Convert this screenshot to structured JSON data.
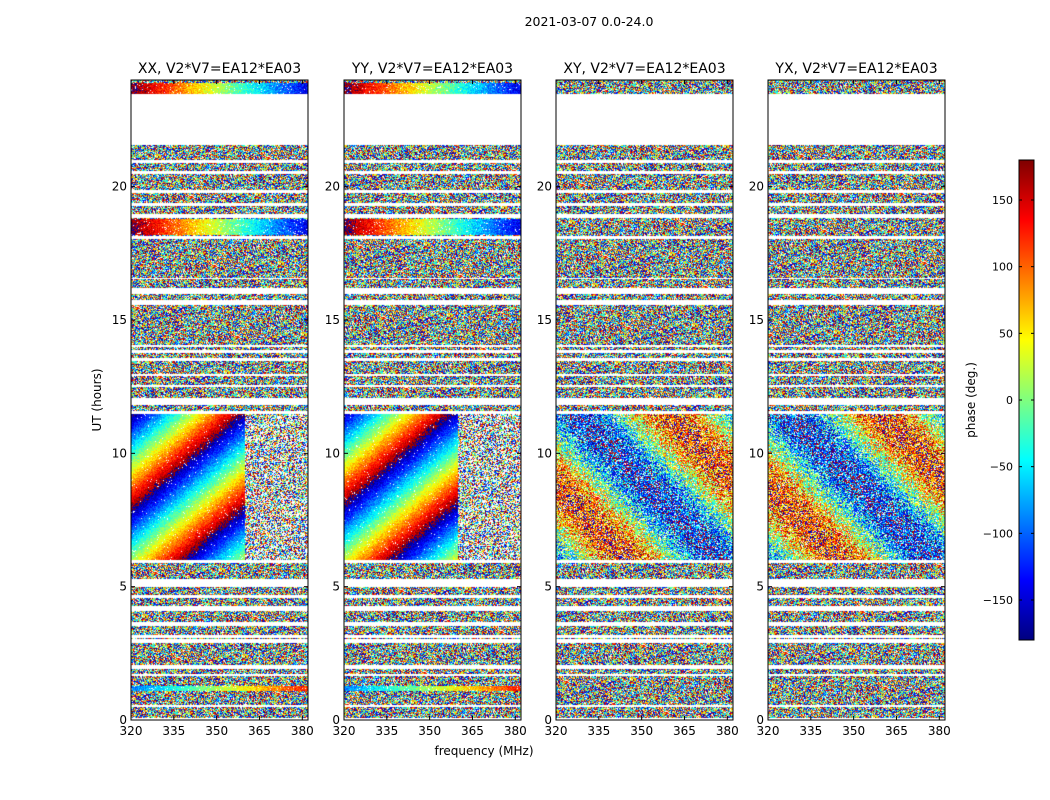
{
  "figure": {
    "suptitle": "2021-03-07 0.0-24.0"
  },
  "chart_data": {
    "type": "heatmap",
    "xlabel": "frequency (MHz)",
    "ylabel": "UT (hours)",
    "xlim": [
      320,
      382
    ],
    "ylim": [
      0,
      24
    ],
    "xticks": [
      320,
      335,
      350,
      365,
      380
    ],
    "yticks": [
      0,
      5,
      10,
      15,
      20
    ],
    "colorbar": {
      "label": "phase (deg.)",
      "range": [
        -180,
        180
      ],
      "ticks": [
        150,
        100,
        50,
        0,
        -50,
        -100,
        -150
      ],
      "tick_labels": [
        "150",
        "100",
        "50",
        "0",
        "−50",
        "−100",
        "−150"
      ],
      "colormap": "jet",
      "colors": [
        "#00007f",
        "#0000ff",
        "#007fff",
        "#00ffff",
        "#7fff7f",
        "#ffff00",
        "#ff7f00",
        "#ff0000",
        "#7f0000"
      ]
    },
    "panels": [
      {
        "title": "XX, V2*V7=EA12*EA03",
        "pol": "XX",
        "coherent": true
      },
      {
        "title": "YY, V2*V7=EA12*EA03",
        "pol": "YY",
        "coherent": true
      },
      {
        "title": "XY, V2*V7=EA12*EA03",
        "pol": "XY",
        "coherent": false
      },
      {
        "title": "YX, V2*V7=EA12*EA03",
        "pol": "YX",
        "coherent": false
      }
    ],
    "flagged_ut_hours": [
      [
        21.6,
        23.5
      ],
      [
        20.9,
        21.0
      ],
      [
        20.5,
        20.6
      ],
      [
        19.8,
        19.9
      ],
      [
        19.3,
        19.4
      ],
      [
        18.85,
        19.0
      ],
      [
        18.05,
        18.15
      ],
      [
        16.55,
        16.6
      ],
      [
        16.0,
        16.2
      ],
      [
        15.6,
        15.75
      ],
      [
        14.0,
        14.1
      ],
      [
        13.8,
        13.9
      ],
      [
        13.5,
        13.6
      ],
      [
        12.9,
        13.0
      ],
      [
        12.5,
        12.6
      ],
      [
        11.85,
        12.1
      ],
      [
        11.5,
        11.6
      ],
      [
        5.9,
        6.0
      ],
      [
        5.0,
        5.3
      ],
      [
        4.6,
        4.7
      ],
      [
        4.1,
        4.3
      ],
      [
        3.55,
        3.7
      ],
      [
        3.1,
        3.2
      ],
      [
        2.9,
        3.05
      ],
      [
        1.95,
        2.1
      ],
      [
        1.65,
        1.75
      ],
      [
        0.5,
        0.6
      ],
      [
        0.0,
        0.1
      ]
    ]
  }
}
